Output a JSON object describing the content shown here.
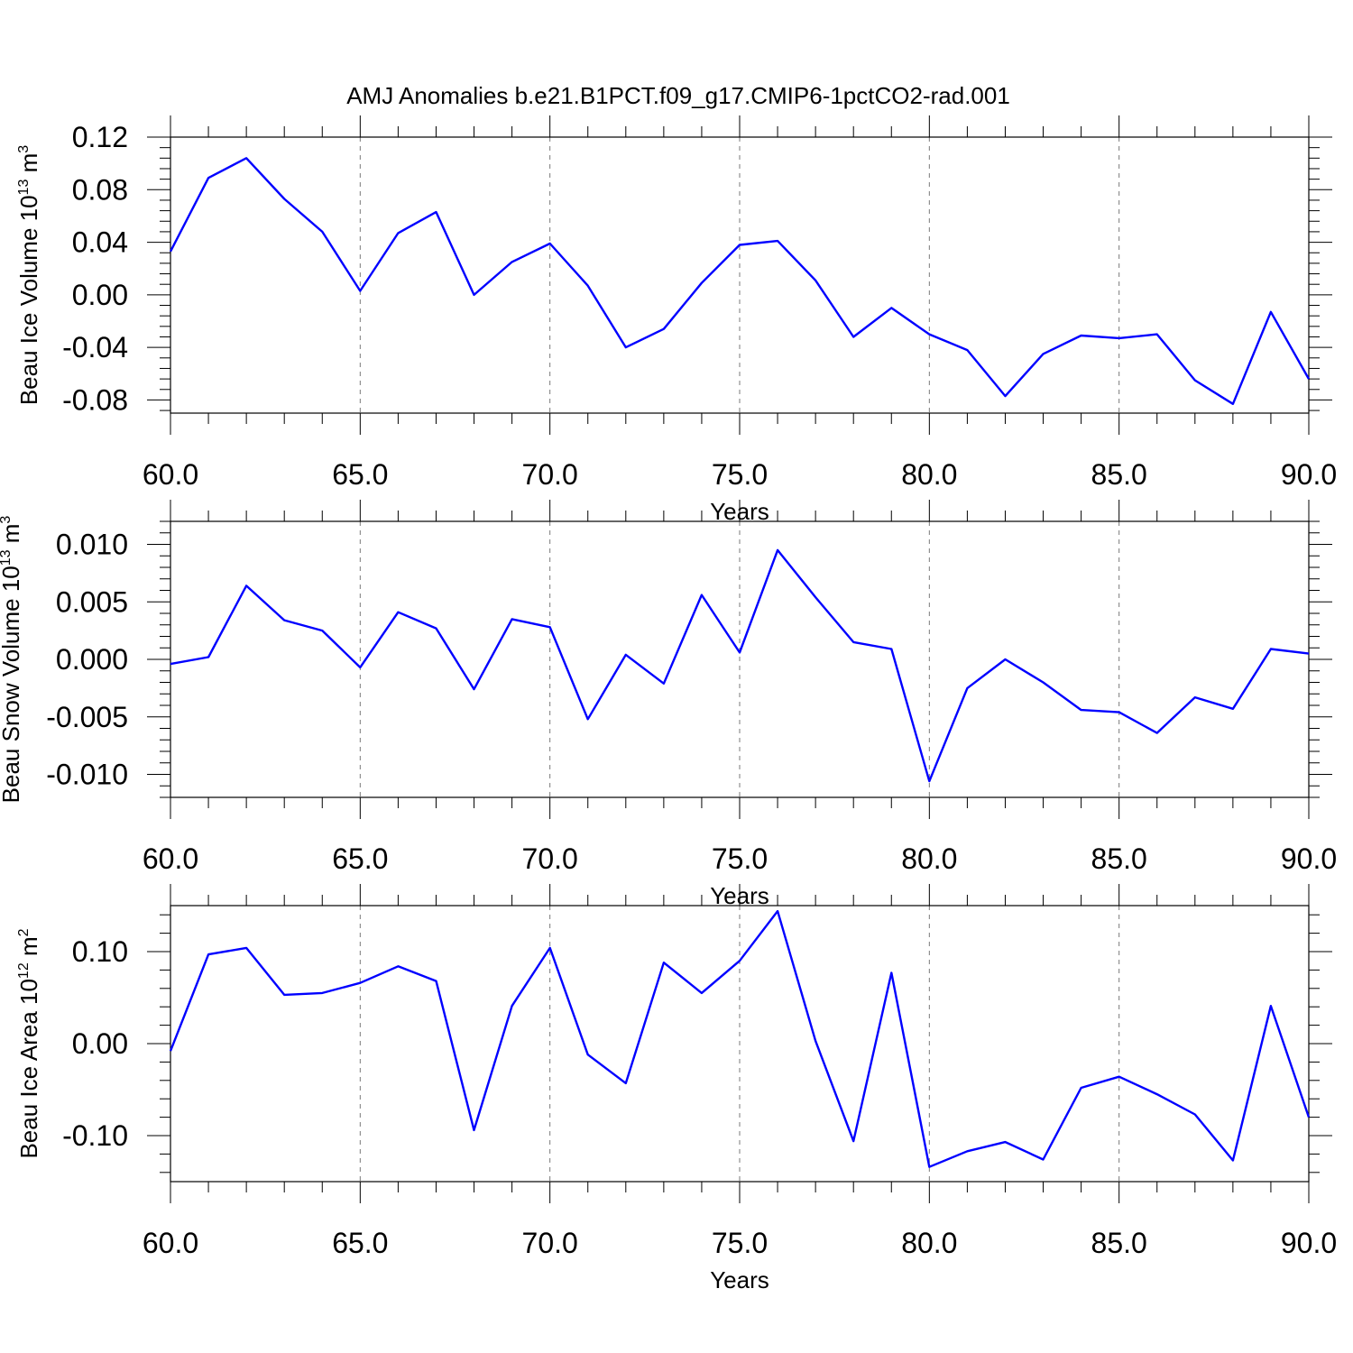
{
  "title": "AMJ Anomalies b.e21.B1PCT.f09_g17.CMIP6-1pctCO2-rad.001",
  "colors": {
    "line": "#0000ff",
    "frame": "#000000",
    "grid": "#7a7a7a"
  },
  "chart_data": [
    {
      "type": "line",
      "ylabel": {
        "text": "Beau Ice Volume 10",
        "exp": "13",
        "unit": " m",
        "unit_exp": "3"
      },
      "xlabel": "Years",
      "xlim": [
        60,
        90
      ],
      "ylim": [
        -0.09,
        0.12
      ],
      "xticks": [
        "60.0",
        "65.0",
        "70.0",
        "75.0",
        "80.0",
        "85.0",
        "90.0"
      ],
      "yticks": [
        "-0.08",
        "-0.04",
        "0.00",
        "0.04",
        "0.08",
        "0.12"
      ],
      "grid": "vertical dashed at major x ticks",
      "x": [
        60,
        61,
        62,
        63,
        64,
        65,
        66,
        67,
        68,
        69,
        70,
        71,
        72,
        73,
        74,
        75,
        76,
        77,
        78,
        79,
        80,
        81,
        82,
        83,
        84,
        85,
        86,
        87,
        88,
        89,
        90
      ],
      "values": [
        0.033,
        0.089,
        0.104,
        0.073,
        0.048,
        0.003,
        0.047,
        0.063,
        0.0,
        0.025,
        0.039,
        0.007,
        -0.04,
        -0.026,
        0.009,
        0.038,
        0.041,
        0.011,
        -0.032,
        -0.01,
        -0.03,
        -0.042,
        -0.077,
        -0.045,
        -0.031,
        -0.033,
        -0.03,
        -0.065,
        -0.083,
        -0.013,
        -0.064
      ]
    },
    {
      "type": "line",
      "ylabel": {
        "text": "Beau Snow Volume 10",
        "exp": "13",
        "unit": " m",
        "unit_exp": "3"
      },
      "xlabel": "Years",
      "xlim": [
        60,
        90
      ],
      "ylim": [
        -0.012,
        0.012
      ],
      "xticks": [
        "60.0",
        "65.0",
        "70.0",
        "75.0",
        "80.0",
        "85.0",
        "90.0"
      ],
      "yticks": [
        "-0.010",
        "-0.005",
        "0.000",
        "0.005",
        "0.010"
      ],
      "grid": "vertical dashed at major x ticks",
      "x": [
        60,
        61,
        62,
        63,
        64,
        65,
        66,
        67,
        68,
        69,
        70,
        71,
        72,
        73,
        74,
        75,
        76,
        77,
        78,
        79,
        80,
        81,
        82,
        83,
        84,
        85,
        86,
        87,
        88,
        89,
        90
      ],
      "values": [
        -0.0004,
        0.0002,
        0.0064,
        0.0034,
        0.0025,
        -0.0007,
        0.0041,
        0.0027,
        -0.0026,
        0.0035,
        0.0028,
        -0.0052,
        0.0004,
        -0.0021,
        0.0056,
        0.0006,
        0.0095,
        0.0054,
        0.0015,
        0.0009,
        -0.0106,
        -0.0025,
        0.0,
        -0.002,
        -0.0044,
        -0.0046,
        -0.0064,
        -0.0033,
        -0.0043,
        0.0009,
        0.0005
      ]
    },
    {
      "type": "line",
      "ylabel": {
        "text": "Beau Ice Area 10",
        "exp": "12",
        "unit": " m",
        "unit_exp": "2"
      },
      "xlabel": "Years",
      "xlim": [
        60,
        90
      ],
      "ylim": [
        -0.15,
        0.15
      ],
      "xticks": [
        "60.0",
        "65.0",
        "70.0",
        "75.0",
        "80.0",
        "85.0",
        "90.0"
      ],
      "yticks": [
        "-0.10",
        "0.00",
        "0.10"
      ],
      "grid": "vertical dashed at major x ticks",
      "x": [
        60,
        61,
        62,
        63,
        64,
        65,
        66,
        67,
        68,
        69,
        70,
        71,
        72,
        73,
        74,
        75,
        76,
        77,
        78,
        79,
        80,
        81,
        82,
        83,
        84,
        85,
        86,
        87,
        88,
        89,
        90
      ],
      "values": [
        -0.008,
        0.097,
        0.104,
        0.053,
        0.055,
        0.066,
        0.084,
        0.068,
        -0.094,
        0.041,
        0.104,
        -0.012,
        -0.043,
        0.088,
        0.055,
        0.09,
        0.144,
        0.003,
        -0.106,
        0.077,
        -0.134,
        -0.117,
        -0.107,
        -0.126,
        -0.048,
        -0.036,
        -0.055,
        -0.077,
        -0.127,
        0.041,
        -0.08
      ]
    }
  ]
}
